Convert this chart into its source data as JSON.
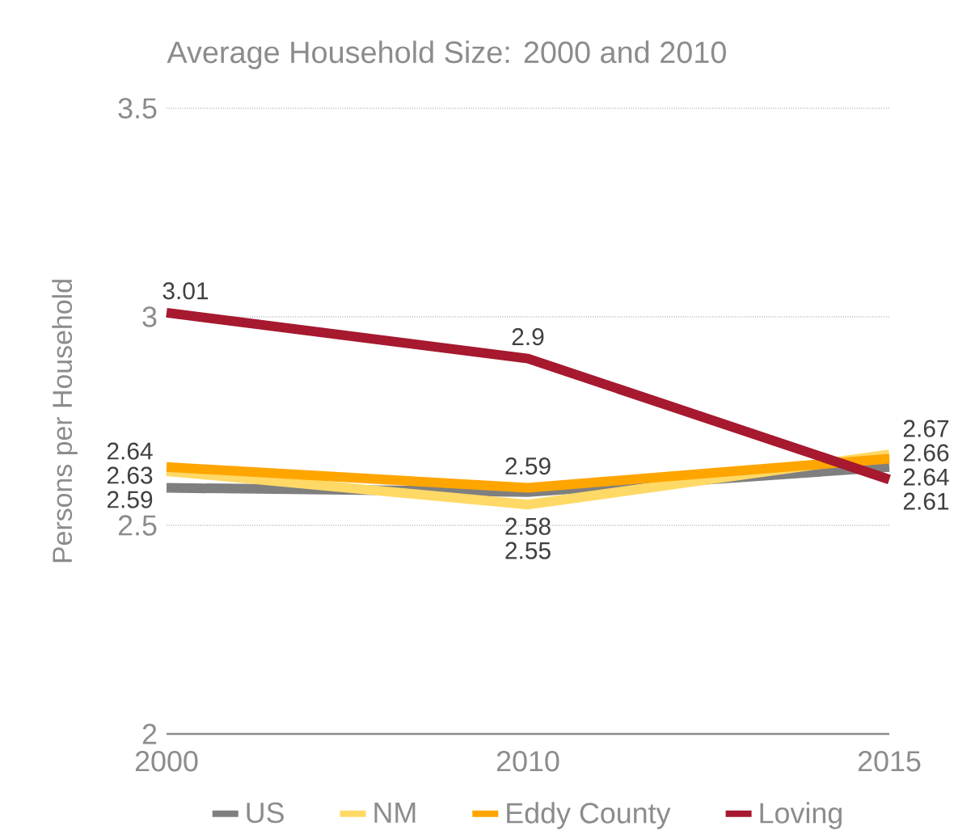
{
  "chart_data": {
    "type": "line",
    "title": "Average Household Size: 2000 and 2010",
    "ylabel": "Persons per Household",
    "categories": [
      "2000",
      "2010",
      "2015"
    ],
    "series": [
      {
        "name": "US",
        "color": "#7f7f7f",
        "values": [
          2.59,
          2.58,
          2.64
        ]
      },
      {
        "name": "NM",
        "color": "#ffd966",
        "values": [
          2.63,
          2.55,
          2.67
        ]
      },
      {
        "name": "Eddy County",
        "color": "#ffa500",
        "values": [
          2.64,
          2.59,
          2.66
        ]
      },
      {
        "name": "Loving",
        "color": "#a6192e",
        "values": [
          3.01,
          2.9,
          2.61
        ]
      }
    ],
    "ylim": [
      2,
      3.5
    ],
    "yticks": [
      2,
      2.5,
      3,
      3.5
    ],
    "grid": "y",
    "legend": "bottom",
    "data_labels": true,
    "marker": "none"
  }
}
